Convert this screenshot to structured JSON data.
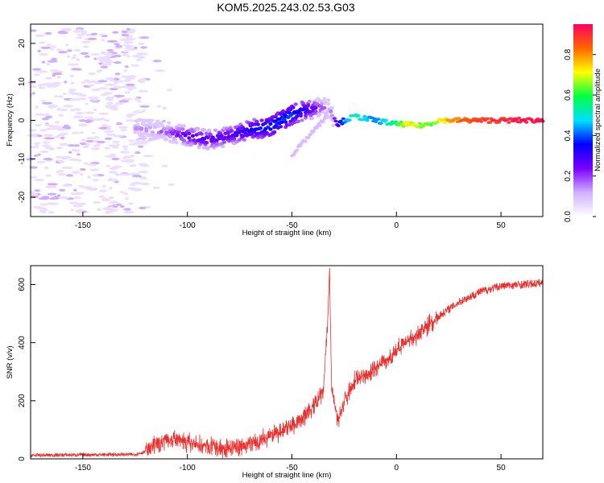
{
  "title": "KOM5.2025.243.02.53.G03",
  "colors": {
    "snr_line": "#e8312f",
    "axes": "#000000",
    "cmap": [
      "#ffffff",
      "#d0b0ff",
      "#7b00ff",
      "#0000ff",
      "#00e0ff",
      "#00ff40",
      "#ffff00",
      "#ff6600",
      "#ff0060"
    ]
  },
  "chart_data": [
    {
      "type": "heatmap",
      "name": "spectrogram",
      "xlabel": "Height of straight line (km)",
      "ylabel": "Frequency (Hz)",
      "xlim": [
        -175,
        70
      ],
      "ylim": [
        -25,
        25
      ],
      "xticks": [
        -150,
        -100,
        -50,
        0,
        50
      ],
      "yticks": [
        -20,
        -10,
        0,
        10,
        20
      ],
      "ridge": {
        "description_points_x": [
          -125,
          -110,
          -100,
          -90,
          -80,
          -70,
          -60,
          -50,
          -45,
          -40,
          -35,
          -32,
          -30,
          -28,
          -25,
          -20,
          -10,
          0,
          5,
          10,
          15,
          20,
          25,
          30,
          40,
          50,
          60,
          70
        ],
        "freq_hz": [
          -2,
          -3,
          -4,
          -5,
          -4,
          -2.5,
          -1.5,
          1.5,
          2.5,
          3,
          3.5,
          3,
          1,
          -1,
          0,
          1,
          0,
          -1,
          -1,
          -1.5,
          -1,
          0,
          0,
          0,
          0,
          0,
          0,
          0
        ],
        "amplitude": [
          0.15,
          0.2,
          0.3,
          0.3,
          0.3,
          0.35,
          0.4,
          0.4,
          0.35,
          0.3,
          0.2,
          0.15,
          0.2,
          0.35,
          0.45,
          0.55,
          0.45,
          0.6,
          0.75,
          0.7,
          0.65,
          0.7,
          0.8,
          0.85,
          0.9,
          0.92,
          0.95,
          0.95
        ]
      },
      "branch": {
        "x": [
          -50,
          -45,
          -40,
          -35,
          -33
        ],
        "freq_hz": [
          -9,
          -6,
          -3,
          0,
          2
        ],
        "amplitude": [
          0.1,
          0.1,
          0.1,
          0.1,
          0.1
        ]
      }
    },
    {
      "type": "colorbar",
      "label": "Normalized spectral amplitude",
      "ticks": [
        0.0,
        0.2,
        0.4,
        0.6,
        0.8
      ],
      "tick_labels": [
        "0.0",
        "0.2",
        "0.4",
        "0.6",
        "0.8"
      ],
      "range": [
        0,
        0.95
      ]
    },
    {
      "type": "line",
      "name": "snr",
      "xlabel": "Height of straight line (km)",
      "ylabel": "SNR (v/v)",
      "xlim": [
        -175,
        70
      ],
      "ylim": [
        0,
        665
      ],
      "xticks": [
        -150,
        -100,
        -50,
        0,
        50
      ],
      "yticks": [
        0,
        200,
        400,
        600
      ],
      "trend_x": [
        -175,
        -150,
        -125,
        -120,
        -110,
        -100,
        -90,
        -80,
        -70,
        -60,
        -50,
        -45,
        -40,
        -35,
        -33,
        -32,
        -31,
        -28,
        -25,
        -20,
        -10,
        0,
        10,
        20,
        30,
        40,
        50,
        60,
        70
      ],
      "trend_y": [
        12,
        14,
        15,
        25,
        70,
        55,
        40,
        35,
        50,
        80,
        115,
        140,
        175,
        230,
        450,
        650,
        240,
        130,
        200,
        270,
        310,
        370,
        430,
        490,
        540,
        575,
        595,
        600,
        605
      ],
      "noise_amplitude": 25
    }
  ]
}
